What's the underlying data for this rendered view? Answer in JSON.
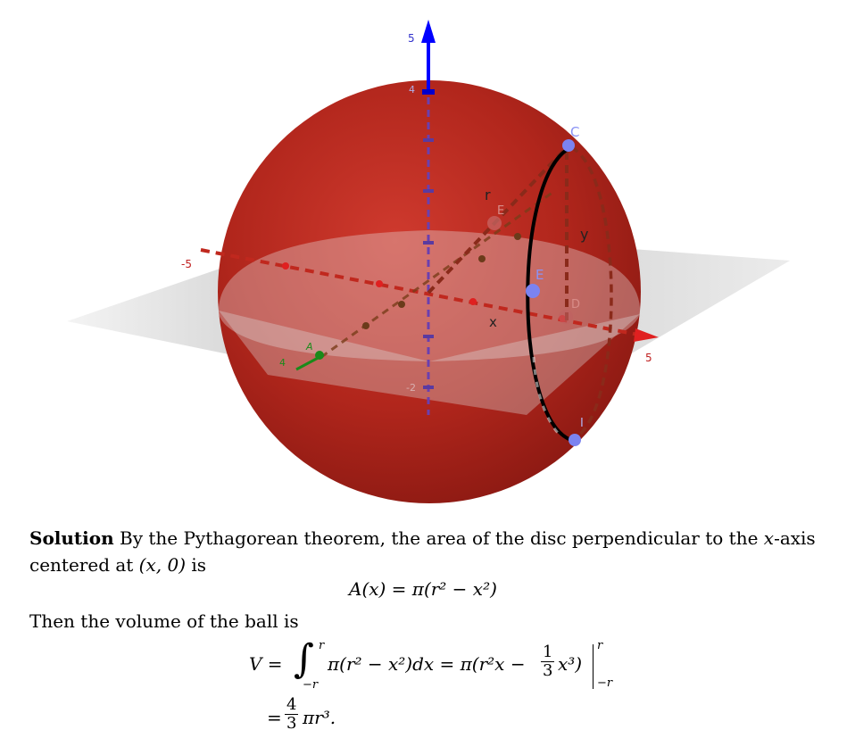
{
  "figure": {
    "axis_ticks": {
      "z_top": "5",
      "z_4": "4",
      "x_neg": "-5",
      "x_pos": "5",
      "y_4": "4",
      "z_neg2": "-2"
    },
    "labels": {
      "r": "r",
      "y": "y",
      "x": "x",
      "C": "C",
      "E": "E",
      "E_ghost": "E",
      "D_ghost": "D",
      "I": "I",
      "A_ghost": "A"
    },
    "colors": {
      "sphere": "#b3261e",
      "plane": "#9a9a9a",
      "z_axis": "#0000ff",
      "x_axis": "#e02020",
      "y_axis": "#1a8a1a",
      "point": "#7b83f0"
    }
  },
  "text": {
    "solution_label": "Solution",
    "line1_a": "By the Pythagorean theorem, the area of the disc perpendicular to the",
    "line1_var": "x",
    "line1_b": "-axis",
    "line2_a": "centered at",
    "line2_point": "(x, 0)",
    "line2_b": "is",
    "eq_area": "A(x) = π(r² − x²)",
    "line3": "Then the volume of the ball is",
    "eq_volume_lhs": "V =",
    "eq_volume_mid": "π(r² − x²)dx = π(r²x −",
    "eq_volume_frac_num": "1",
    "eq_volume_frac_den": "3",
    "eq_volume_tail": "x³)",
    "eq_upper": "r",
    "eq_lower": "−r",
    "eq_result_eq": "=",
    "eq_result_frac_num": "4",
    "eq_result_frac_den": "3",
    "eq_result_tail": "πr³."
  }
}
